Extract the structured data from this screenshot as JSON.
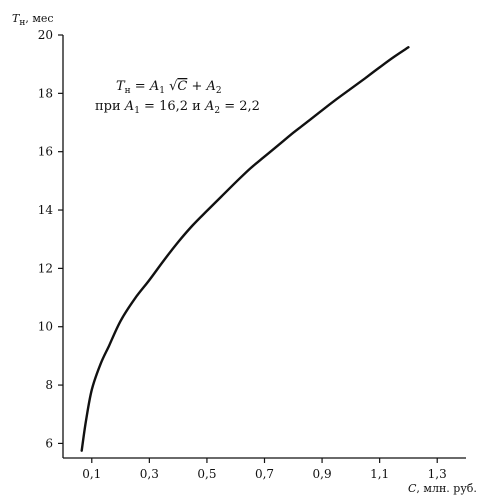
{
  "chart_data": {
    "type": "line",
    "title": "",
    "ylabel": {
      "var": "T",
      "sub": "н",
      "unit": ", мес"
    },
    "xlabel": {
      "var": "C",
      "unit": ", млн. руб."
    },
    "xlim": [
      0.0,
      1.4
    ],
    "ylim": [
      5.5,
      20.0
    ],
    "x_ticks": [
      0.1,
      0.3,
      0.5,
      0.7,
      0.9,
      1.1,
      1.3
    ],
    "x_tick_labels": [
      "0,1",
      "0,3",
      "0,5",
      "0,7",
      "0,9",
      "1,1",
      "1,3"
    ],
    "y_ticks": [
      6,
      8,
      10,
      12,
      14,
      16,
      18,
      20
    ],
    "y_tick_labels": [
      "6",
      "8",
      "10",
      "12",
      "14",
      "16",
      "18",
      "20"
    ],
    "grid": false,
    "annotation": {
      "line1": {
        "T": "T",
        "T_sub": "н",
        "A1": "A",
        "A1_sub": "1",
        "C": "C",
        "A2": "A",
        "A2_sub": "2"
      },
      "line2": {
        "prefix": "при ",
        "A1": "A",
        "A1_sub": "1",
        "A1_val": " = 16,2 и ",
        "A2": "A",
        "A2_sub": "2",
        "A2_val": " = 2,2"
      }
    },
    "series": [
      {
        "x": [
          0.065,
          0.08,
          0.1,
          0.13,
          0.16,
          0.2,
          0.25,
          0.3,
          0.35,
          0.4,
          0.45,
          0.5,
          0.55,
          0.6,
          0.65,
          0.7,
          0.75,
          0.8,
          0.85,
          0.9,
          0.95,
          1.0,
          1.05,
          1.1,
          1.15,
          1.2
        ],
        "y": [
          5.75,
          6.78,
          7.84,
          8.71,
          9.35,
          10.2,
          10.97,
          11.6,
          12.27,
          12.9,
          13.47,
          13.97,
          14.46,
          14.95,
          15.42,
          15.83,
          16.24,
          16.65,
          17.03,
          17.42,
          17.8,
          18.16,
          18.52,
          18.89,
          19.25,
          19.58
        ]
      }
    ]
  }
}
